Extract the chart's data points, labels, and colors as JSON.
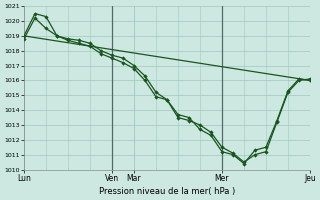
{
  "background_color": "#cce8e0",
  "grid_color": "#a0c8c0",
  "line_color": "#1a5520",
  "xlabel": "Pression niveau de la mer( hPa )",
  "ylim": [
    1010,
    1021
  ],
  "yticks": [
    1010,
    1011,
    1012,
    1013,
    1014,
    1015,
    1016,
    1017,
    1018,
    1019,
    1020,
    1021
  ],
  "day_labels": [
    "Lun",
    "Ven",
    "Mar",
    "Mer",
    "Jeu"
  ],
  "day_positions": [
    0.0,
    8.0,
    10.0,
    18.0,
    26.0
  ],
  "xlim": [
    0,
    26
  ],
  "vline_dark": [
    8.0,
    18.0
  ],
  "line1_x": [
    0,
    26
  ],
  "line1_y": [
    1019.0,
    1016.0
  ],
  "line2_x": [
    0,
    1,
    2,
    3,
    4,
    5,
    6,
    7,
    8,
    9,
    10,
    11,
    12,
    13,
    14,
    15,
    16,
    17,
    18,
    19,
    20,
    21,
    22,
    23,
    24,
    25,
    26
  ],
  "line2_y": [
    1019.0,
    1020.5,
    1020.3,
    1019.0,
    1018.8,
    1018.7,
    1018.5,
    1018.0,
    1017.7,
    1017.5,
    1017.0,
    1016.3,
    1015.2,
    1014.7,
    1013.5,
    1013.3,
    1013.0,
    1012.5,
    1011.5,
    1011.1,
    1010.5,
    1011.0,
    1011.2,
    1013.2,
    1015.2,
    1016.0,
    1016.1
  ],
  "line3_x": [
    0,
    1,
    2,
    3,
    4,
    5,
    6,
    7,
    8,
    9,
    10,
    11,
    12,
    13,
    14,
    15,
    16,
    17,
    18,
    19,
    20,
    21,
    22,
    23,
    24,
    25,
    26
  ],
  "line3_y": [
    1018.8,
    1020.2,
    1019.5,
    1019.0,
    1018.7,
    1018.5,
    1018.3,
    1017.8,
    1017.5,
    1017.2,
    1016.8,
    1016.0,
    1014.9,
    1014.7,
    1013.7,
    1013.5,
    1012.7,
    1012.3,
    1011.2,
    1011.0,
    1010.4,
    1011.3,
    1011.5,
    1013.3,
    1015.3,
    1016.1,
    1016.0
  ]
}
